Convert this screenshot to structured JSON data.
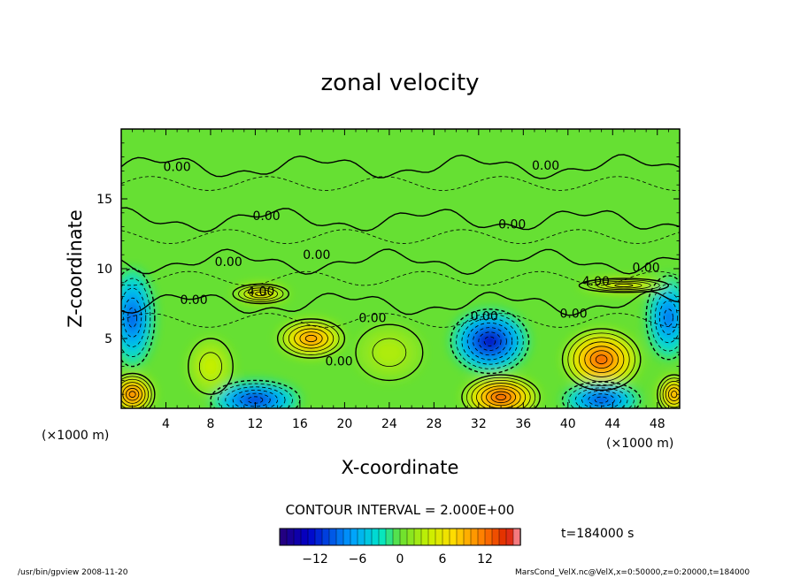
{
  "chart_data": {
    "type": "heatmap",
    "title": "zonal velocity",
    "xlabel": "X-coordinate",
    "ylabel": "Z-coordinate",
    "x_unit_left": "(×1000 m)",
    "x_unit_right": "(×1000 m)",
    "xlim": [
      0,
      50
    ],
    "ylim": [
      0,
      20
    ],
    "x_ticks": [
      4,
      8,
      12,
      16,
      20,
      24,
      28,
      32,
      36,
      40,
      44,
      48
    ],
    "y_ticks": [
      5,
      10,
      15
    ],
    "contour_interval_label": "CONTOUR INTERVAL = 2.000E+00",
    "time_label": "t=184000 s",
    "colorbar": {
      "range": [
        -17,
        17
      ],
      "ticks": [
        -12,
        -6,
        0,
        6,
        12
      ],
      "tick_labels": [
        "−12",
        "−6",
        "0",
        "6",
        "12"
      ]
    },
    "contour_labels": [
      {
        "text": "0.00",
        "x": 5.0,
        "z": 17.3
      },
      {
        "text": "0.00",
        "x": 38.0,
        "z": 17.4
      },
      {
        "text": "0.00",
        "x": 13.0,
        "z": 13.8
      },
      {
        "text": "0.00",
        "x": 35.0,
        "z": 13.2
      },
      {
        "text": "0.00",
        "x": 17.5,
        "z": 11.0
      },
      {
        "text": "0.00",
        "x": 9.6,
        "z": 10.5
      },
      {
        "text": "0.00",
        "x": 47.0,
        "z": 10.1
      },
      {
        "text": "4.00",
        "x": 42.5,
        "z": 9.1
      },
      {
        "text": "4.00",
        "x": 12.5,
        "z": 8.4
      },
      {
        "text": "0.00",
        "x": 6.5,
        "z": 7.8
      },
      {
        "text": "0.00",
        "x": 22.5,
        "z": 6.5
      },
      {
        "text": "0.00",
        "x": 32.5,
        "z": 6.6
      },
      {
        "text": "0.00",
        "x": 40.5,
        "z": 6.8
      },
      {
        "text": "0.00",
        "x": 19.5,
        "z": 3.4
      }
    ],
    "features": [
      {
        "x": 43.0,
        "z": 3.5,
        "value": 14,
        "rx": 3.5,
        "rz": 2.2
      },
      {
        "x": 17.0,
        "z": 5.0,
        "value": 12,
        "rx": 3.0,
        "rz": 1.4
      },
      {
        "x": 33.0,
        "z": 4.8,
        "value": -14,
        "rx": 3.5,
        "rz": 2.3
      },
      {
        "x": 1.0,
        "z": 6.5,
        "value": -10,
        "rx": 2.0,
        "rz": 3.5
      },
      {
        "x": 49.0,
        "z": 6.5,
        "value": -9,
        "rx": 2.0,
        "rz": 3.0
      },
      {
        "x": 12.0,
        "z": 0.6,
        "value": -12,
        "rx": 4.0,
        "rz": 1.4
      },
      {
        "x": 34.0,
        "z": 0.8,
        "value": 15,
        "rx": 3.5,
        "rz": 1.6
      },
      {
        "x": 43.0,
        "z": 0.6,
        "value": -11,
        "rx": 3.5,
        "rz": 1.3
      },
      {
        "x": 1.0,
        "z": 1.0,
        "value": 14,
        "rx": 2.0,
        "rz": 1.5
      },
      {
        "x": 49.5,
        "z": 1.0,
        "value": 12,
        "rx": 1.5,
        "rz": 1.4
      },
      {
        "x": 12.5,
        "z": 8.2,
        "value": 9,
        "rx": 2.5,
        "rz": 0.7
      },
      {
        "x": 45.0,
        "z": 8.8,
        "value": 9,
        "rx": 4.0,
        "rz": 0.5
      },
      {
        "x": 24.0,
        "z": 4.0,
        "value": 3,
        "rx": 3.0,
        "rz": 2.0
      },
      {
        "x": 8.0,
        "z": 3.0,
        "value": 4,
        "rx": 2.0,
        "rz": 2.0
      }
    ]
  },
  "footer": {
    "left": "/usr/bin/gpview  2008-11-20",
    "right": "MarsCond_VelX.nc@VelX,x=0:50000,z=0:20000,t=184000"
  }
}
